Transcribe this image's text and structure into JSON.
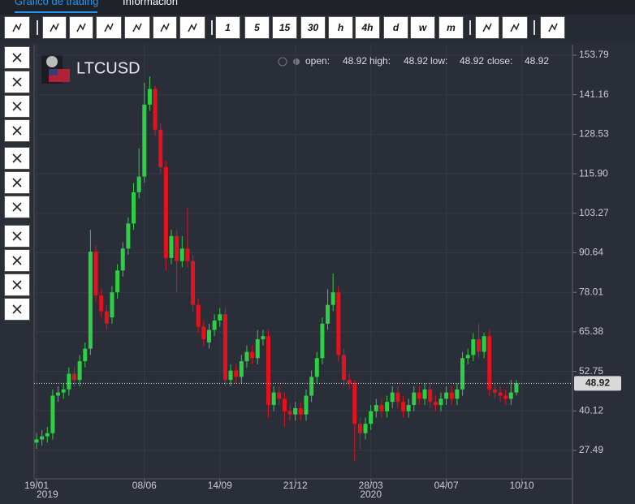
{
  "tabs": [
    "Gráfico de trading",
    "Información"
  ],
  "toolbar": {
    "intervals": [
      "1",
      "5",
      "15",
      "30",
      "h",
      "4h",
      "d",
      "w",
      "m"
    ]
  },
  "chart_data": {
    "type": "candlestick",
    "symbol": "LTCUSD",
    "ohlc_legend": [
      {
        "label": "open:",
        "value": 48.92
      },
      {
        "label": "high:",
        "value": 48.92
      },
      {
        "label": "low:",
        "value": 48.92
      },
      {
        "label": "close:",
        "value": 48.92
      }
    ],
    "last_price": 48.92,
    "up_color": "#2ecf45",
    "down_color": "#e3121c",
    "grid": true,
    "ylim": [
      19.71,
      156.38
    ],
    "yticks": [
      153.79,
      141.16,
      128.53,
      {
        "value": 115.9,
        "label": "115.90"
      },
      103.27,
      90.64,
      78.01,
      65.38,
      52.75,
      40.12,
      27.49
    ],
    "xlim": [
      0,
      99.4
    ],
    "xticks": [
      {
        "value": 0,
        "label": "19/01"
      },
      {
        "value": 20,
        "label": "08/06"
      },
      {
        "value": 34,
        "label": "14/09"
      },
      {
        "value": 48,
        "label": "21/12"
      },
      {
        "value": 62,
        "label": "28/03"
      },
      {
        "value": 76,
        "label": "04/07"
      },
      {
        "value": 90,
        "label": "10/10"
      }
    ],
    "xtick_years": [
      {
        "value": 0,
        "label": "2019"
      },
      {
        "value": 62,
        "label": "2020"
      }
    ],
    "open": [
      30,
      31,
      32,
      33,
      45,
      46,
      47,
      52,
      50,
      56,
      60,
      91,
      77,
      72,
      70,
      78,
      85,
      92,
      100,
      110,
      115,
      138,
      143,
      130,
      118,
      89,
      96,
      88,
      92,
      88,
      74,
      67,
      62,
      66,
      69,
      71,
      50,
      53,
      51,
      56,
      59,
      57,
      63,
      64,
      42,
      46,
      44,
      40,
      39,
      41,
      39,
      45,
      51,
      57,
      68,
      74,
      78,
      58,
      50,
      49,
      36,
      33,
      36,
      40,
      42,
      40,
      43,
      46,
      43,
      40,
      42,
      46,
      44,
      47,
      43,
      42,
      44,
      46,
      44,
      47,
      57,
      58,
      63,
      59,
      64,
      47,
      46,
      45,
      44,
      46
    ],
    "high": [
      33,
      34,
      35,
      47,
      48,
      49,
      54,
      54,
      58,
      62,
      98,
      93,
      79,
      74,
      80,
      87,
      94,
      102,
      113,
      124,
      145,
      147,
      144,
      132,
      120,
      98,
      98,
      96,
      105,
      90,
      76,
      69,
      68,
      71,
      73,
      73,
      55,
      55,
      58,
      61,
      61,
      66,
      66,
      66,
      48,
      48,
      46,
      42,
      43,
      43,
      47,
      53,
      59,
      70,
      79,
      84,
      80,
      60,
      52,
      50,
      38,
      38,
      42,
      44,
      44,
      45,
      48,
      48,
      45,
      44,
      48,
      48,
      49,
      49,
      45,
      46,
      48,
      48,
      49,
      59,
      60,
      65,
      68,
      65,
      66,
      49,
      48,
      47,
      50,
      50
    ],
    "low": [
      28,
      29,
      30,
      31,
      43,
      44,
      45,
      48,
      48,
      54,
      58,
      75,
      70,
      66,
      68,
      76,
      83,
      90,
      98,
      108,
      113,
      136,
      128,
      116,
      85,
      87,
      78,
      86,
      86,
      72,
      65,
      61,
      60,
      64,
      67,
      48,
      48,
      49,
      49,
      54,
      55,
      55,
      61,
      38,
      40,
      42,
      35,
      37,
      37,
      37,
      37,
      43,
      49,
      55,
      66,
      72,
      56,
      48,
      47,
      24,
      28,
      31,
      34,
      38,
      38,
      38,
      41,
      41,
      38,
      38,
      40,
      42,
      42,
      41,
      40,
      40,
      42,
      42,
      42,
      45,
      55,
      56,
      57,
      57,
      45,
      44,
      43,
      42,
      42,
      45
    ],
    "close": [
      31,
      32,
      33,
      45,
      46,
      47,
      52,
      50,
      56,
      60,
      91,
      77,
      72,
      68,
      78,
      85,
      92,
      100,
      110,
      115,
      138,
      143,
      130,
      118,
      89,
      96,
      88,
      92,
      88,
      74,
      67,
      63,
      66,
      69,
      71,
      50,
      53,
      51,
      56,
      59,
      57,
      63,
      64,
      42,
      46,
      44,
      40,
      39,
      41,
      39,
      45,
      51,
      57,
      68,
      74,
      78,
      58,
      50,
      49,
      36,
      33,
      36,
      40,
      42,
      40,
      43,
      46,
      43,
      40,
      42,
      46,
      44,
      47,
      43,
      42,
      44,
      46,
      44,
      47,
      57,
      58,
      63,
      59,
      64,
      47,
      46,
      45,
      44,
      46,
      48.92
    ]
  }
}
